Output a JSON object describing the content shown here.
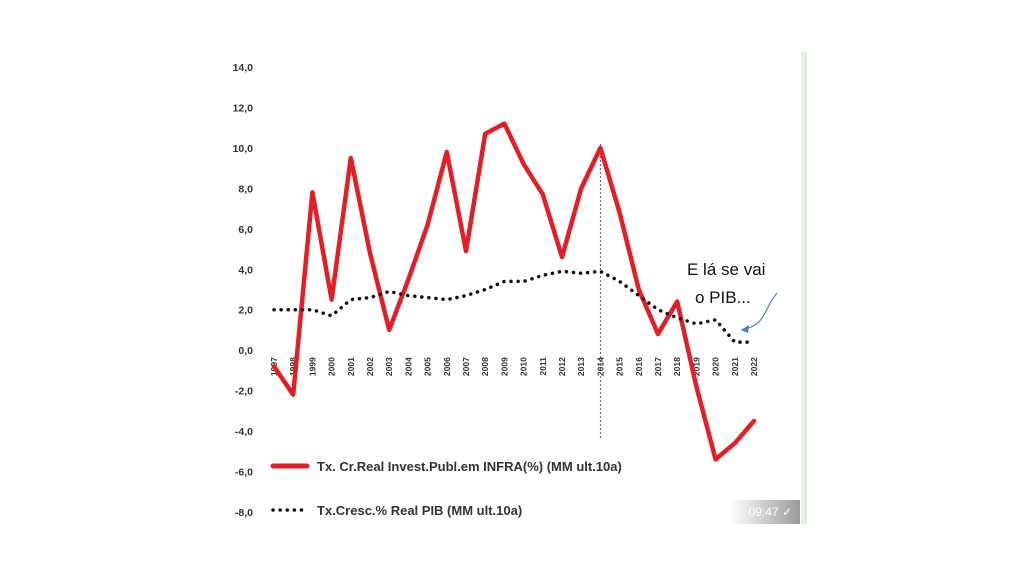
{
  "chart_data": {
    "type": "line",
    "x": [
      "1997",
      "1998",
      "1999",
      "2000",
      "2001",
      "2002",
      "2003",
      "2004",
      "2005",
      "2006",
      "2007",
      "2008",
      "2009",
      "2010",
      "2011",
      "2012",
      "2013",
      "2014",
      "2015",
      "2016",
      "2017",
      "2018",
      "2019",
      "2020",
      "2021",
      "2022"
    ],
    "series": [
      {
        "name": "Tx. Cr.Real Invest.Publ.em INFRA(%) (MM ult.10a)",
        "color": "#e41e26",
        "style": "solid",
        "values": [
          -0.8,
          -2.2,
          7.8,
          2.5,
          9.5,
          4.8,
          1.0,
          3.5,
          6.2,
          9.8,
          4.9,
          10.7,
          11.2,
          9.2,
          7.7,
          4.6,
          8.0,
          10.0,
          6.8,
          3.0,
          0.8,
          2.4,
          -1.8,
          -5.4,
          -4.6,
          -3.5
        ]
      },
      {
        "name": "Tx.Cresc.% Real  PIB (MM ult.10a)",
        "color": "#111111",
        "style": "dotted",
        "values": [
          2.0,
          2.0,
          2.0,
          1.7,
          2.5,
          2.6,
          2.9,
          2.7,
          2.6,
          2.5,
          2.7,
          3.0,
          3.4,
          3.4,
          3.7,
          3.9,
          3.8,
          3.9,
          3.4,
          2.7,
          2.0,
          1.6,
          1.3,
          1.5,
          0.4,
          0.4
        ]
      }
    ],
    "yticks": [
      "14,0",
      "12,0",
      "10,0",
      "8,0",
      "6,0",
      "4,0",
      "2,0",
      "0,0",
      "-2,0",
      "-4,0",
      "-6,0",
      "-8,0"
    ],
    "ylim": [
      -8,
      14
    ],
    "grid": false,
    "legend_position": "bottom-left",
    "reference_line_x": "2014",
    "annotation": {
      "line1": "E lá se vai",
      "line2": "o PIB...",
      "arrow_color": "#4a7fc0"
    }
  },
  "overlay": {
    "timestamp": "09:47 ✓"
  }
}
